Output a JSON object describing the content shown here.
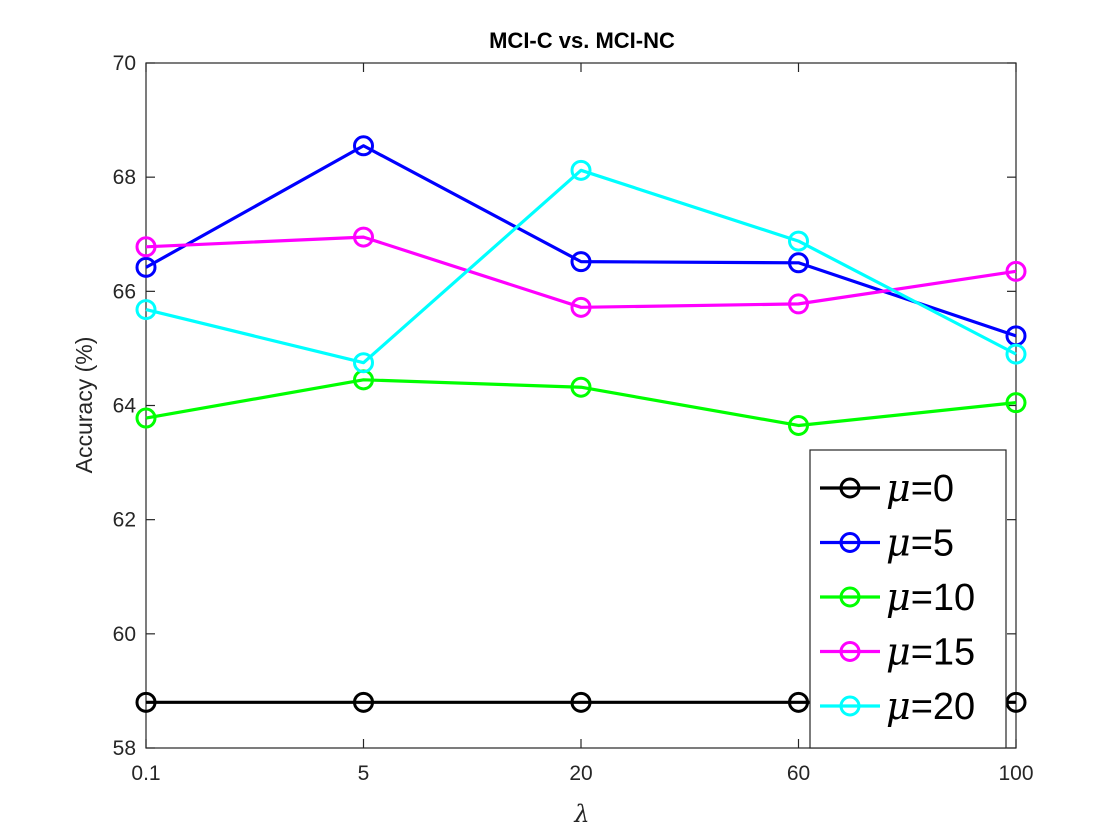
{
  "chart_data": {
    "type": "line",
    "title": "MCI-C vs. MCI-NC",
    "xlabel": "λ",
    "ylabel": "Accuracy (%)",
    "categories": [
      "0.1",
      "5",
      "20",
      "60",
      "100"
    ],
    "ylim": [
      58,
      70
    ],
    "yticks": [
      58,
      60,
      62,
      64,
      66,
      68,
      70
    ],
    "grid": false,
    "legend_position": "bottom-right",
    "legend_symbol": "μ",
    "series": [
      {
        "name": "=0",
        "legend_value": "0",
        "color": "#000000",
        "values": [
          58.8,
          58.8,
          58.8,
          58.8,
          58.8
        ]
      },
      {
        "name": "=5",
        "legend_value": "5",
        "color": "#0000ff",
        "values": [
          66.42,
          68.55,
          66.52,
          66.5,
          65.22
        ]
      },
      {
        "name": "=10",
        "legend_value": "10",
        "color": "#00ff00",
        "values": [
          63.78,
          64.45,
          64.32,
          63.65,
          64.05
        ]
      },
      {
        "name": "=15",
        "legend_value": "15",
        "color": "#ff00ff",
        "values": [
          66.78,
          66.95,
          65.72,
          65.78,
          66.35
        ]
      },
      {
        "name": "=20",
        "legend_value": "20",
        "color": "#00ffff",
        "values": [
          65.68,
          64.75,
          68.12,
          66.88,
          64.9
        ]
      }
    ]
  }
}
